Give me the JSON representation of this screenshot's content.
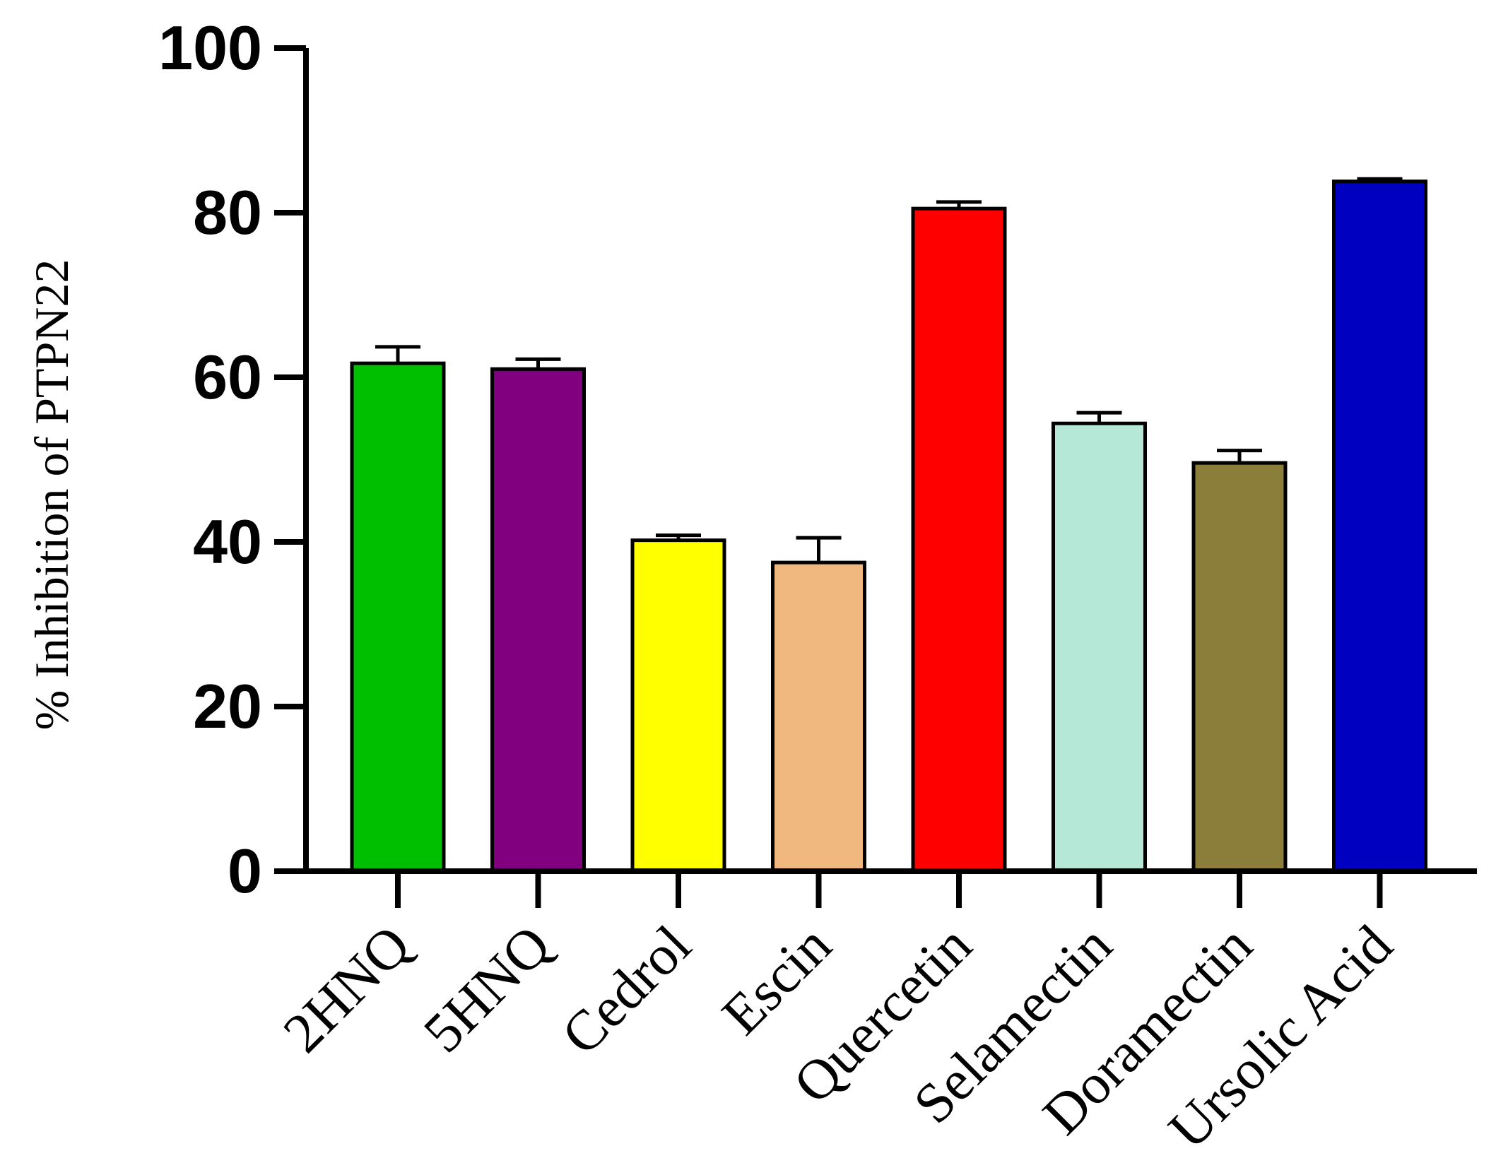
{
  "chart_data": {
    "type": "bar",
    "ylabel": "% Inhibition of PTPN22",
    "xlabel": "",
    "ylim": [
      0,
      100
    ],
    "yticks": [
      0,
      20,
      40,
      60,
      80,
      100
    ],
    "categories": [
      "2HNQ",
      "5HNQ",
      "Cedrol",
      "Escin",
      "Quercetin",
      "Selamectin",
      "Doramectin",
      "Ursolic Acid"
    ],
    "values": [
      61.7,
      61.0,
      40.2,
      37.5,
      80.5,
      54.4,
      49.6,
      83.8
    ],
    "errors": [
      2.0,
      1.2,
      0.6,
      3.0,
      0.8,
      1.3,
      1.5,
      0.3
    ],
    "colors": [
      "#00be00",
      "#800080",
      "#ffff00",
      "#f0b87e",
      "#ff0000",
      "#b6e8d8",
      "#8b7d3a",
      "#0000c0"
    ],
    "grid": false,
    "legend": "none"
  }
}
